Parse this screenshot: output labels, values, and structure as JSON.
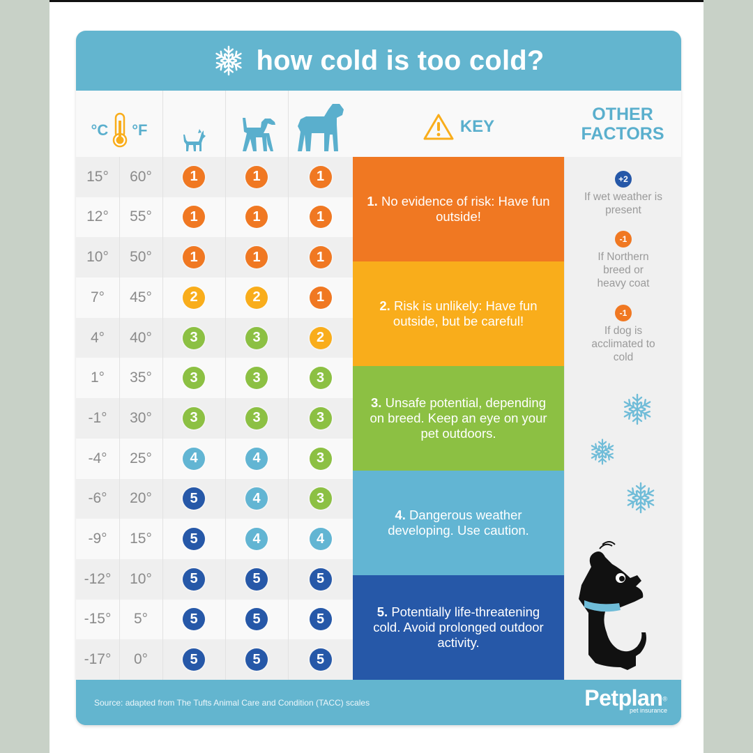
{
  "title": "how cold is too cold?",
  "headers": {
    "celsius": "°C",
    "fahrenheit": "°F",
    "key": "KEY",
    "other_factors_line1": "OTHER",
    "other_factors_line2": "FACTORS"
  },
  "dog_size_columns": [
    "small-dog",
    "medium-dog",
    "large-dog"
  ],
  "rows": [
    {
      "c": "15°",
      "f": "60°",
      "small": "1",
      "medium": "1",
      "large": "1"
    },
    {
      "c": "12°",
      "f": "55°",
      "small": "1",
      "medium": "1",
      "large": "1"
    },
    {
      "c": "10°",
      "f": "50°",
      "small": "1",
      "medium": "1",
      "large": "1"
    },
    {
      "c": "7°",
      "f": "45°",
      "small": "2",
      "medium": "2",
      "large": "1"
    },
    {
      "c": "4°",
      "f": "40°",
      "small": "3",
      "medium": "3",
      "large": "2"
    },
    {
      "c": "1°",
      "f": "35°",
      "small": "3",
      "medium": "3",
      "large": "3"
    },
    {
      "c": "-1°",
      "f": "30°",
      "small": "3",
      "medium": "3",
      "large": "3"
    },
    {
      "c": "-4°",
      "f": "25°",
      "small": "4",
      "medium": "4",
      "large": "3"
    },
    {
      "c": "-6°",
      "f": "20°",
      "small": "5",
      "medium": "4",
      "large": "3"
    },
    {
      "c": "-9°",
      "f": "15°",
      "small": "5",
      "medium": "4",
      "large": "4"
    },
    {
      "c": "-12°",
      "f": "10°",
      "small": "5",
      "medium": "5",
      "large": "5"
    },
    {
      "c": "-15°",
      "f": "5°",
      "small": "5",
      "medium": "5",
      "large": "5"
    },
    {
      "c": "-17°",
      "f": "0°",
      "small": "5",
      "medium": "5",
      "large": "5"
    }
  ],
  "key": [
    {
      "num": "1.",
      "text": "No evidence of risk: Have fun outside!",
      "color": "#f07822"
    },
    {
      "num": "2.",
      "text": "Risk is unlikely: Have fun outside, but be careful!",
      "color": "#f9ad1b"
    },
    {
      "num": "3.",
      "text": "Unsafe potential, depending on breed. Keep an eye on your pet outdoors.",
      "color": "#8cc043"
    },
    {
      "num": "4.",
      "text": "Dangerous weather developing. Use caution.",
      "color": "#62b5d3"
    },
    {
      "num": "5.",
      "text": "Potentially life-threatening cold. Avoid prolonged outdoor activity.",
      "color": "#2658a8"
    }
  ],
  "level_colors": {
    "1": "#f07822",
    "2": "#f9ad1b",
    "3": "#8cc043",
    "4": "#62b5d3",
    "5": "#2658a8"
  },
  "other_factors": [
    {
      "badge": "+2",
      "badge_color": "#2658a8",
      "text": "If wet weather is present"
    },
    {
      "badge": "-1",
      "badge_color": "#f07822",
      "text": "If Northern breed or heavy coat"
    },
    {
      "badge": "-1",
      "badge_color": "#f07822",
      "text": "If dog is acclimated to cold"
    }
  ],
  "footer": {
    "source": "Source: adapted from The Tufts Animal Care and Condition (TACC) scales",
    "brand": "Petplan",
    "brand_reg": "®",
    "brand_sub": "pet insurance"
  },
  "colors": {
    "header_blue": "#63b5cf",
    "icon_blue": "#5aafcd",
    "thermo_orange": "#f9ad1b",
    "text_grey": "#8a8a8a"
  }
}
